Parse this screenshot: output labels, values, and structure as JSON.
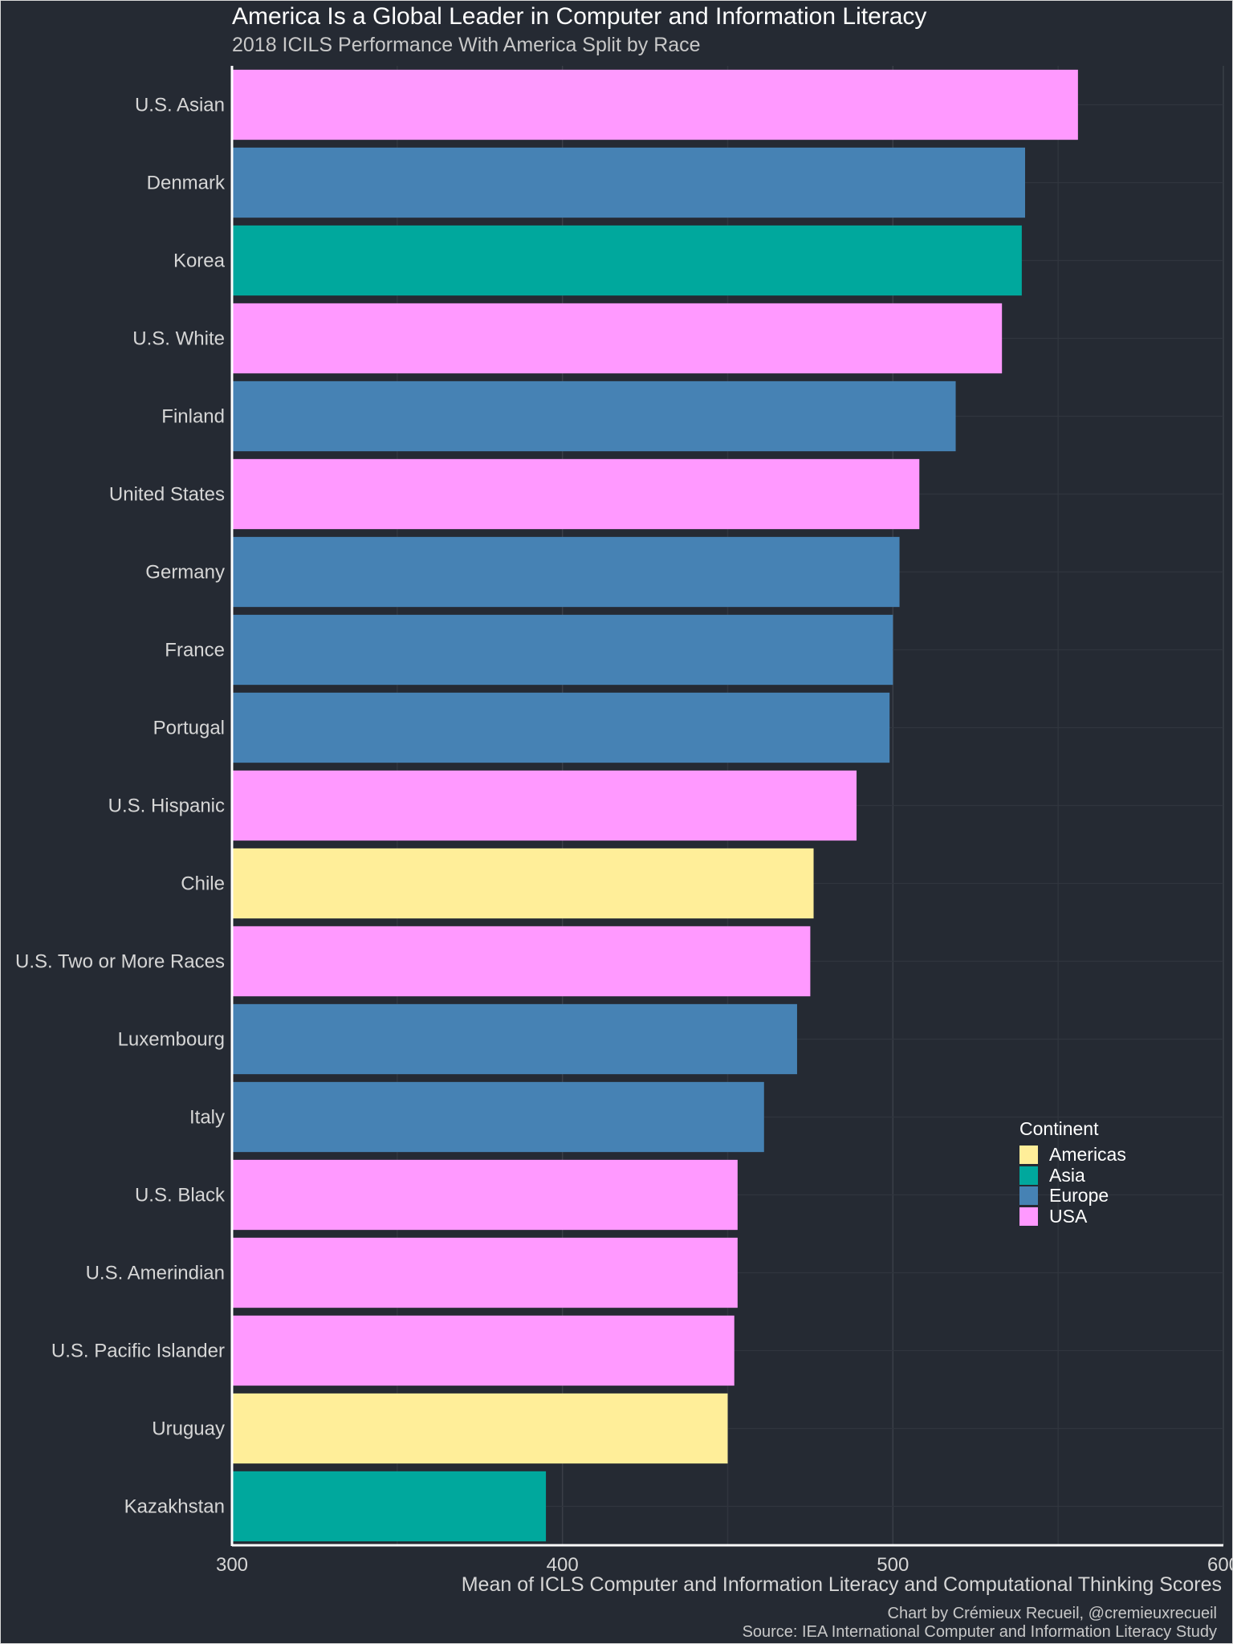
{
  "chart_data": {
    "type": "bar",
    "orientation": "horizontal",
    "title": "America Is a Global Leader in Computer and Information Literacy",
    "subtitle": "2018 ICILS Performance With America Split by Race",
    "xlabel": "Mean of ICLS Computer and Information Literacy and Computational Thinking Scores",
    "xlim": [
      300,
      600
    ],
    "xticks": [
      300,
      400,
      500,
      600
    ],
    "grid": true,
    "captions": [
      "Chart by Crémieux Recueil, @cremieuxrecueil",
      "Source: IEA International Computer and Information Literacy Study"
    ],
    "legend": {
      "title": "Continent",
      "placement": "right",
      "entries": [
        {
          "name": "Americas",
          "color": "#ffee99"
        },
        {
          "name": "Asia",
          "color": "#00a89d"
        },
        {
          "name": "Europe",
          "color": "#4682b4"
        },
        {
          "name": "USA",
          "color": "#ff99ff"
        }
      ]
    },
    "categories": [
      "U.S. Asian",
      "Denmark",
      "Korea",
      "U.S. White",
      "Finland",
      "United States",
      "Germany",
      "France",
      "Portugal",
      "U.S. Hispanic",
      "Chile",
      "U.S. Two or More Races",
      "Luxembourg",
      "Italy",
      "U.S. Black",
      "U.S. Amerindian",
      "U.S. Pacific Islander",
      "Uruguay",
      "Kazakhstan"
    ],
    "values": [
      556,
      540,
      539,
      533,
      519,
      508,
      502,
      500,
      499,
      489,
      476,
      475,
      471,
      461,
      453,
      453,
      452,
      450,
      395
    ],
    "groups": [
      "USA",
      "Europe",
      "Asia",
      "USA",
      "Europe",
      "USA",
      "Europe",
      "Europe",
      "Europe",
      "USA",
      "Americas",
      "USA",
      "Europe",
      "Europe",
      "USA",
      "USA",
      "USA",
      "Americas",
      "Asia"
    ]
  }
}
